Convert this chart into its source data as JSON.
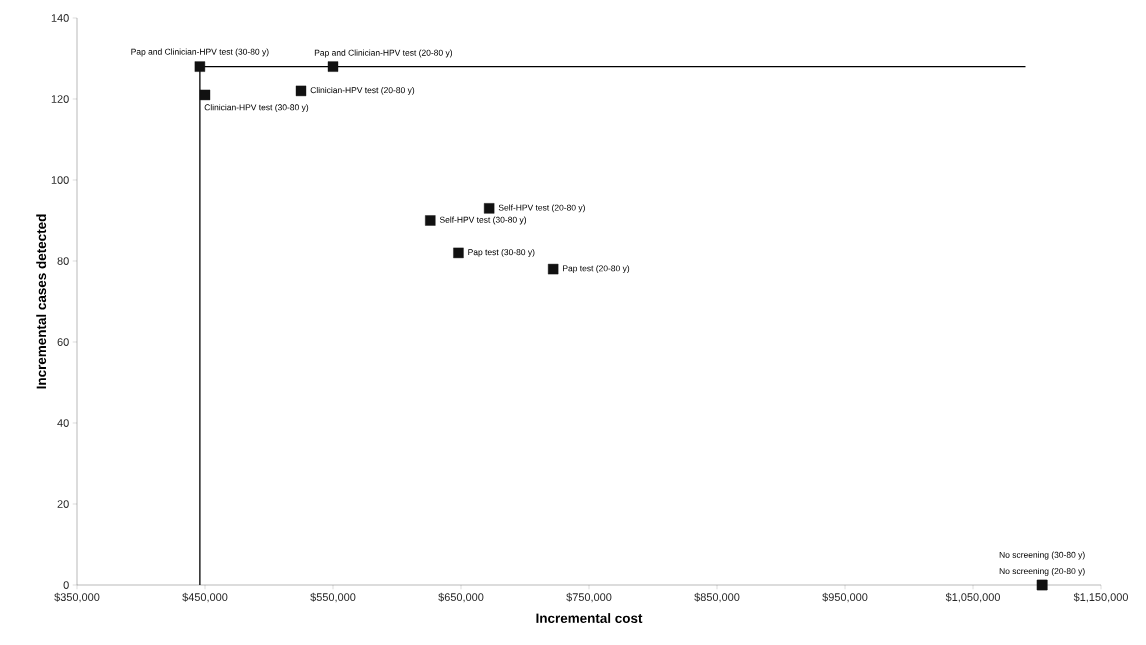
{
  "chart_data": {
    "type": "scatter",
    "xlabel": "Incremental cost",
    "ylabel": "Incremental cases detected",
    "xlim": [
      350000,
      1150000
    ],
    "ylim": [
      0,
      140
    ],
    "xticks": [
      {
        "value": 350000,
        "label": "$350,000"
      },
      {
        "value": 450000,
        "label": "$450,000"
      },
      {
        "value": 550000,
        "label": "$550,000"
      },
      {
        "value": 650000,
        "label": "$650,000"
      },
      {
        "value": 750000,
        "label": "$750,000"
      },
      {
        "value": 850000,
        "label": "$850,000"
      },
      {
        "value": 950000,
        "label": "$950,000"
      },
      {
        "value": 1050000,
        "label": "$1,050,000"
      },
      {
        "value": 1150000,
        "label": "$1,150,000"
      }
    ],
    "yticks": [
      0,
      20,
      40,
      60,
      80,
      100,
      120,
      140
    ],
    "grid": false,
    "series": [
      {
        "type": "line",
        "color": "#000000",
        "marker": "none",
        "x": [
          446000,
          446000,
          1091000
        ],
        "values": [
          0,
          128,
          128
        ]
      },
      {
        "color": "#111111",
        "marker": "square",
        "x": [
          446000,
          550000,
          450000,
          525000,
          672000,
          626000,
          648000,
          722000,
          1104000,
          1104000
        ],
        "values": [
          128,
          128,
          121,
          122,
          93,
          90,
          82,
          78,
          0,
          0
        ]
      }
    ],
    "annotations": [
      {
        "text": "Pap and Clinician-HPV test (30-80 y)",
        "x": 446000,
        "y": 128
      },
      {
        "text": "Pap and Clinician-HPV test (20-80 y)",
        "x": 550000,
        "y": 128
      },
      {
        "text": "Clinician-HPV test (30-80 y)",
        "x": 450000,
        "y": 121
      },
      {
        "text": "Clinician-HPV test (20-80 y)",
        "x": 525000,
        "y": 122
      },
      {
        "text": "Self-HPV test (20-80 y)",
        "x": 672000,
        "y": 93
      },
      {
        "text": "Self-HPV test (30-80 y)",
        "x": 626000,
        "y": 90
      },
      {
        "text": "Pap test (30-80 y)",
        "x": 648000,
        "y": 82
      },
      {
        "text": "Pap test (20-80 y)",
        "x": 722000,
        "y": 78
      },
      "No screening (30-80 y)",
      {
        "text": "No screening (20-80 y)",
        "x": 1104000,
        "y": 0
      }
    ]
  }
}
